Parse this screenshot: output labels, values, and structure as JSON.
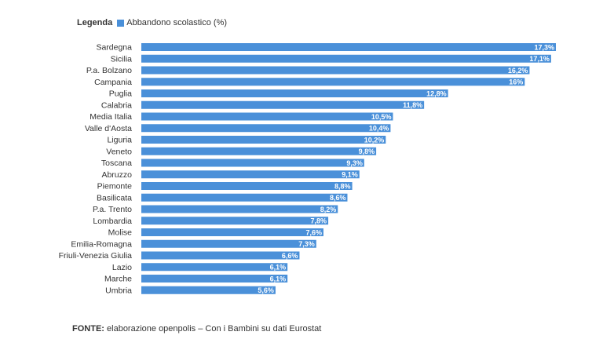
{
  "legend": {
    "title": "Legenda",
    "series_label": "Abbandono scolastico (%)"
  },
  "footer": {
    "label": "FONTE:",
    "text": "elaborazione openpolis – Con i Bambini su dati Eurostat"
  },
  "colors": {
    "bar": "#4a90d9",
    "label_text": "#333333",
    "value_text": "#ffffff"
  },
  "chart_data": {
    "type": "bar",
    "orientation": "horizontal",
    "categories": [
      "Sardegna",
      "Sicilia",
      "P.a. Bolzano",
      "Campania",
      "Puglia",
      "Calabria",
      "Media Italia",
      "Valle d'Aosta",
      "Liguria",
      "Veneto",
      "Toscana",
      "Abruzzo",
      "Piemonte",
      "Basilicata",
      "P.a. Trento",
      "Lombardia",
      "Molise",
      "Emilia-Romagna",
      "Friuli-Venezia Giulia",
      "Lazio",
      "Marche",
      "Umbria"
    ],
    "values": [
      17.3,
      17.1,
      16.2,
      16,
      12.8,
      11.8,
      10.5,
      10.4,
      10.2,
      9.8,
      9.3,
      9.1,
      8.8,
      8.6,
      8.2,
      7.8,
      7.6,
      7.3,
      6.6,
      6.1,
      6.1,
      5.6
    ],
    "value_labels": [
      "17,3%",
      "17,1%",
      "16,2%",
      "16%",
      "12,8%",
      "11,8%",
      "10,5%",
      "10,4%",
      "10,2%",
      "9,8%",
      "9,3%",
      "9,1%",
      "8,8%",
      "8,6%",
      "8,2%",
      "7,8%",
      "7,6%",
      "7,3%",
      "6,6%",
      "6,1%",
      "6,1%",
      "5,6%"
    ],
    "series": [
      {
        "name": "Abbandono scolastico (%)"
      }
    ],
    "xlim": [
      0,
      17.3
    ],
    "grid": false,
    "legend_position": "top-left"
  }
}
